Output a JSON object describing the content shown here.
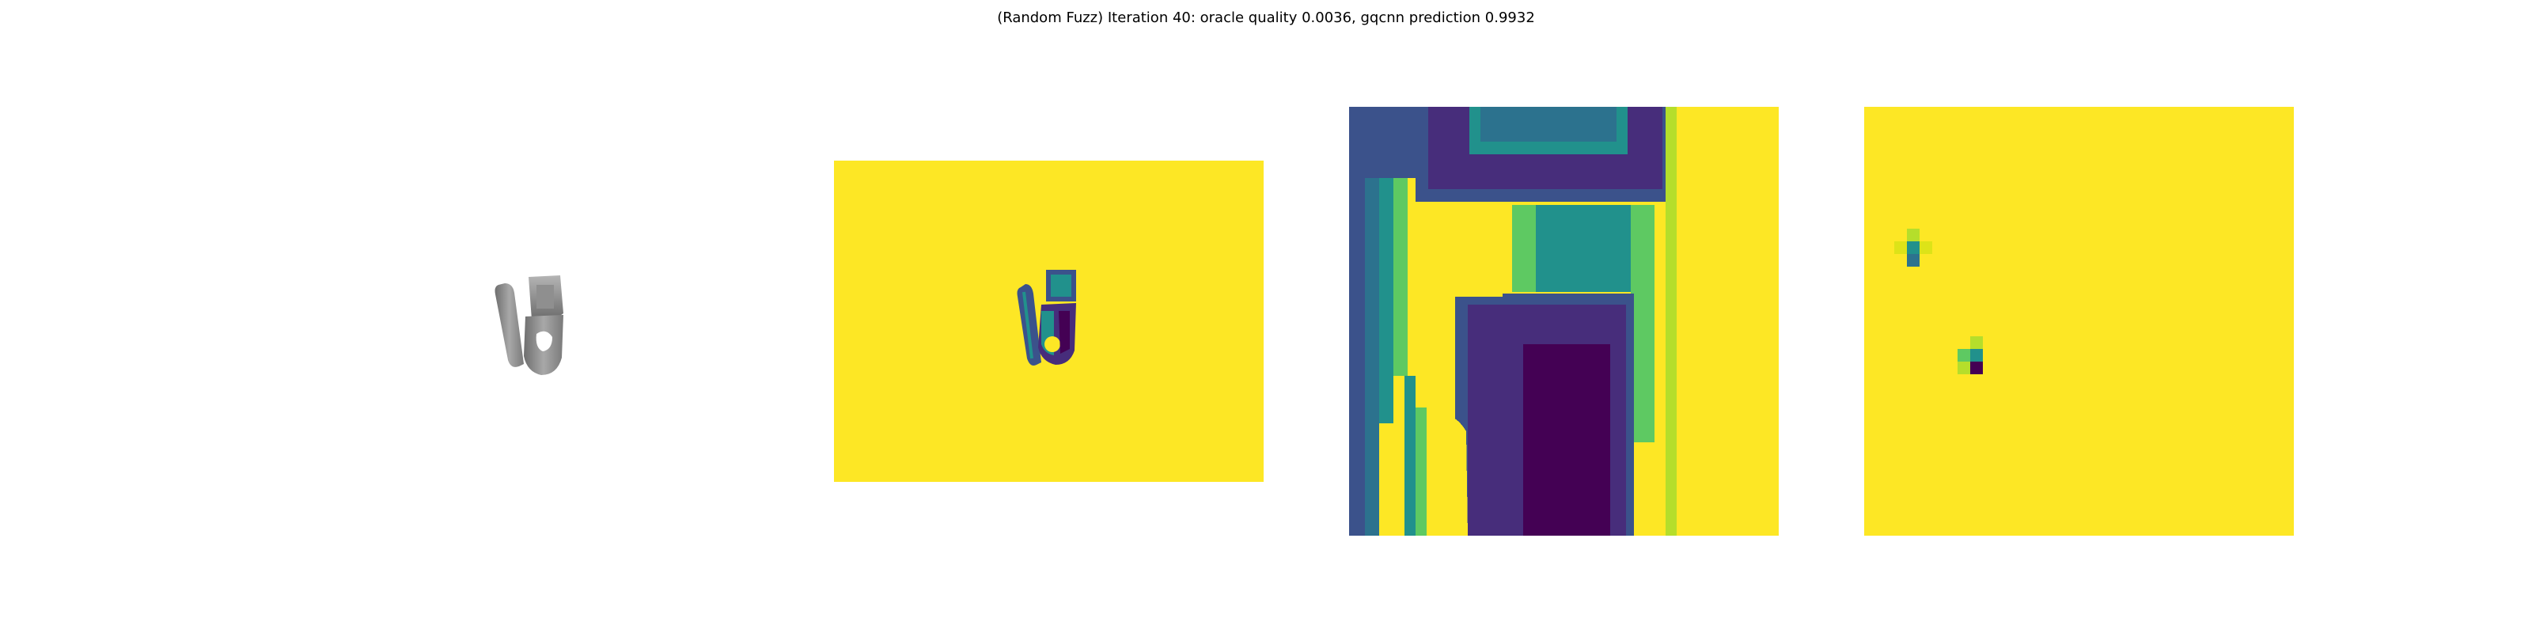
{
  "figure": {
    "title": "(Random Fuzz) Iteration 40: oracle quality 0.0036, gqcnn prediction 0.9932"
  },
  "colors": {
    "viridis_yellow": "#fde725",
    "viridis_dark": "#440154",
    "viridis_purple": "#472d7b",
    "viridis_blue": "#3b528b",
    "viridis_teal": "#21918c",
    "viridis_green": "#5ec962",
    "gray_object": "#8a8a8a"
  },
  "panels": [
    {
      "id": "rendered-object",
      "kind": "grayscale-render"
    },
    {
      "id": "depth-image-full",
      "kind": "depth-heatmap"
    },
    {
      "id": "depth-crop",
      "kind": "depth-heatmap-zoom"
    },
    {
      "id": "fuzz-noise",
      "kind": "noise-heatmap"
    }
  ]
}
